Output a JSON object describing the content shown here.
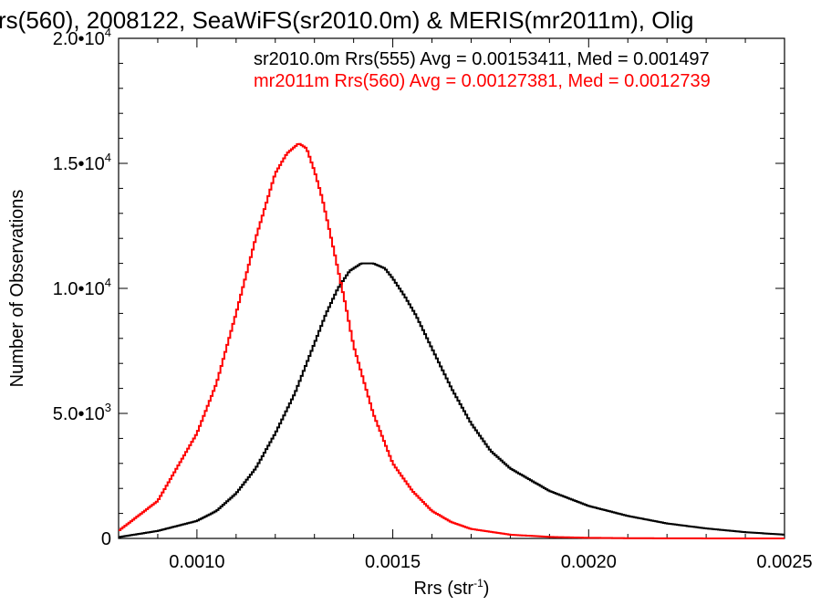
{
  "chart_data": {
    "type": "line",
    "title": "rs(560), 2008122, SeaWiFS(sr2010.0m) & MERIS(mr2011m), Olig",
    "xlabel": "Rrs (str",
    "xlabel_sup": "-1",
    "xlabel_close": ")",
    "ylabel": "Number of Observations",
    "xlim": [
      0.0008,
      0.0025
    ],
    "ylim": [
      0,
      20000
    ],
    "x_ticks": [
      {
        "value": 0.001,
        "label": "0.0010"
      },
      {
        "value": 0.0015,
        "label": "0.0015"
      },
      {
        "value": 0.002,
        "label": "0.0020"
      },
      {
        "value": 0.0025,
        "label": "0.0025"
      }
    ],
    "y_ticks": [
      {
        "value": 0,
        "mant": "0",
        "exp": ""
      },
      {
        "value": 5000,
        "mant": "5.0•10",
        "exp": "3"
      },
      {
        "value": 10000,
        "mant": "1.0•10",
        "exp": "4"
      },
      {
        "value": 15000,
        "mant": "1.5•10",
        "exp": "4"
      },
      {
        "value": 20000,
        "mant": "2.0•10",
        "exp": "4"
      }
    ],
    "grid": false,
    "legend_position": "top-right",
    "series": [
      {
        "name": "sr2010.0m Rrs(555)",
        "legend_text": "sr2010.0m Rrs(555) Avg = 0.00153411, Med = 0.001497",
        "color": "#000000",
        "x": [
          0.0008,
          0.0009,
          0.001,
          0.00105,
          0.0011,
          0.00115,
          0.0012,
          0.00125,
          0.0013,
          0.00133,
          0.00136,
          0.00139,
          0.00142,
          0.00145,
          0.00148,
          0.0015,
          0.00153,
          0.00156,
          0.0016,
          0.00165,
          0.0017,
          0.00175,
          0.0018,
          0.0019,
          0.002,
          0.0021,
          0.0022,
          0.0023,
          0.0024,
          0.0025
        ],
        "y": [
          50,
          300,
          700,
          1100,
          1800,
          2800,
          4200,
          5800,
          7800,
          9000,
          10000,
          10700,
          11000,
          11000,
          10800,
          10400,
          9700,
          8900,
          7600,
          6000,
          4600,
          3500,
          2800,
          1900,
          1300,
          900,
          600,
          400,
          250,
          150
        ]
      },
      {
        "name": "mr2011m Rrs(560)",
        "legend_text": "mr2011m Rrs(560) Avg = 0.00127381, Med = 0.0012739",
        "color": "#ff0000",
        "x": [
          0.0008,
          0.0009,
          0.001,
          0.00105,
          0.0011,
          0.00115,
          0.0012,
          0.00123,
          0.00126,
          0.00128,
          0.0013,
          0.00132,
          0.00135,
          0.00138,
          0.0014,
          0.00145,
          0.0015,
          0.00155,
          0.0016,
          0.00165,
          0.0017,
          0.0018,
          0.0019,
          0.002,
          0.0021,
          0.0022,
          0.0023,
          0.0025
        ],
        "y": [
          300,
          1500,
          4200,
          6200,
          9000,
          12000,
          14600,
          15400,
          15800,
          15600,
          14700,
          13600,
          11500,
          9300,
          7700,
          5000,
          3000,
          1900,
          1100,
          650,
          380,
          150,
          60,
          25,
          10,
          5,
          2,
          0
        ]
      }
    ]
  }
}
